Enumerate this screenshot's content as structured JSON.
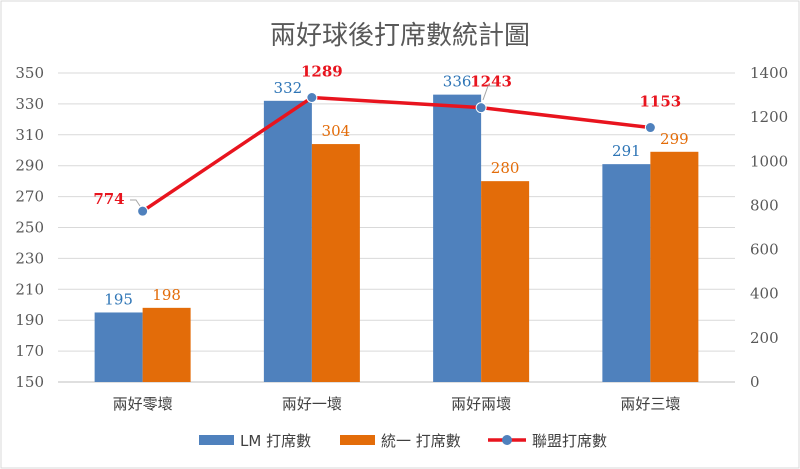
{
  "chart_data": {
    "type": "bar",
    "title": "兩好球後打席數統計圖",
    "categories": [
      "兩好零壞",
      "兩好一壞",
      "兩好兩壞",
      "兩好三壞"
    ],
    "series": [
      {
        "name": "LM 打席數",
        "type": "bar",
        "axis": "left",
        "color": "#4F81BD",
        "label_color": "#2E75B6",
        "values": [
          195,
          332,
          336,
          291
        ]
      },
      {
        "name": "統一 打席數",
        "type": "bar",
        "axis": "left",
        "color": "#E36C09",
        "label_color": "#E36C09",
        "values": [
          198,
          304,
          280,
          299
        ]
      },
      {
        "name": "聯盟打席數",
        "type": "line",
        "axis": "right",
        "color": "#E8141E",
        "marker_color": "#4F81BD",
        "label_color": "#E8141E",
        "values": [
          774,
          1289,
          1243,
          1153
        ]
      }
    ],
    "y_left": {
      "min": 150,
      "max": 350,
      "ticks": [
        "150",
        "170",
        "190",
        "210",
        "230",
        "250",
        "270",
        "290",
        "310",
        "330",
        "350"
      ]
    },
    "y_right": {
      "min": 0,
      "max": 1400,
      "ticks": [
        "0",
        "200",
        "400",
        "600",
        "800",
        "1000",
        "1200",
        "1400"
      ]
    },
    "grid": true,
    "legend": "bottom"
  }
}
